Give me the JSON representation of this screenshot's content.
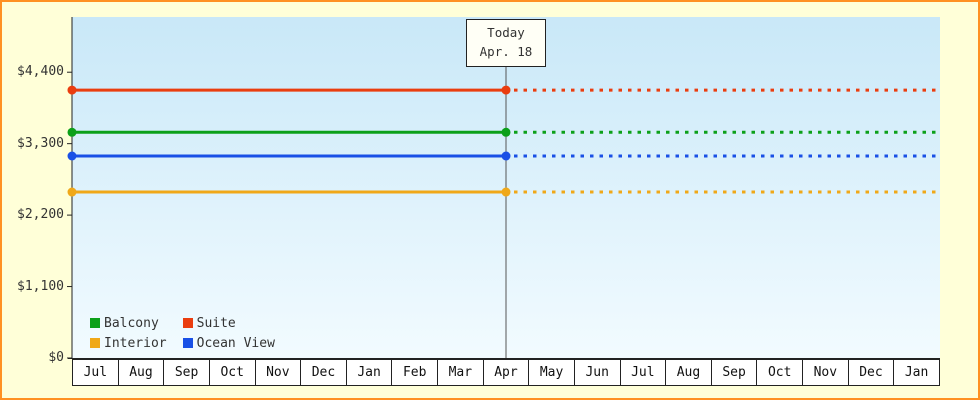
{
  "window": {
    "bg": "#ffffd8",
    "border_color": "#ff9122",
    "plot_bg_top": "#c9e8f8",
    "plot_bg_bottom": "#f2fbff",
    "axis_color": "#222222",
    "text_color": "#333333"
  },
  "chart_data": {
    "type": "line",
    "title": "",
    "xlabel": "",
    "ylabel": "",
    "x_categories": [
      "Jul",
      "Aug",
      "Sep",
      "Oct",
      "Nov",
      "Dec",
      "Jan",
      "Feb",
      "Mar",
      "Apr",
      "May",
      "Jun",
      "Jul",
      "Aug",
      "Sep",
      "Oct",
      "Nov",
      "Dec",
      "Jan"
    ],
    "y_ticks": [
      {
        "label": "$4,400",
        "value": 4400
      },
      {
        "label": "$3,300",
        "value": 3300
      },
      {
        "label": "$2,200",
        "value": 2200
      },
      {
        "label": "$1,100",
        "value": 1100
      },
      {
        "label": "$0",
        "value": 0
      }
    ],
    "ylim": [
      0,
      5250
    ],
    "grid": false,
    "today": {
      "label_line1": "Today",
      "label_line2": "Apr. 18",
      "category_index": 9
    },
    "series": [
      {
        "name": "Suite",
        "color": "#ea3d0f",
        "value": 4125,
        "style": "flat-line, solid to today then dotted projection"
      },
      {
        "name": "Balcony",
        "color": "#0ca019",
        "value": 3475,
        "style": "flat-line, solid to today then dotted projection"
      },
      {
        "name": "Ocean View",
        "color": "#1950e6",
        "value": 3110,
        "style": "flat-line, solid to today then dotted projection"
      },
      {
        "name": "Interior",
        "color": "#f0a818",
        "value": 2555,
        "style": "flat-line, solid to today then dotted projection"
      }
    ],
    "legend": {
      "position": "bottom-left",
      "items": [
        "Balcony",
        "Suite",
        "Interior",
        "Ocean View"
      ]
    }
  }
}
